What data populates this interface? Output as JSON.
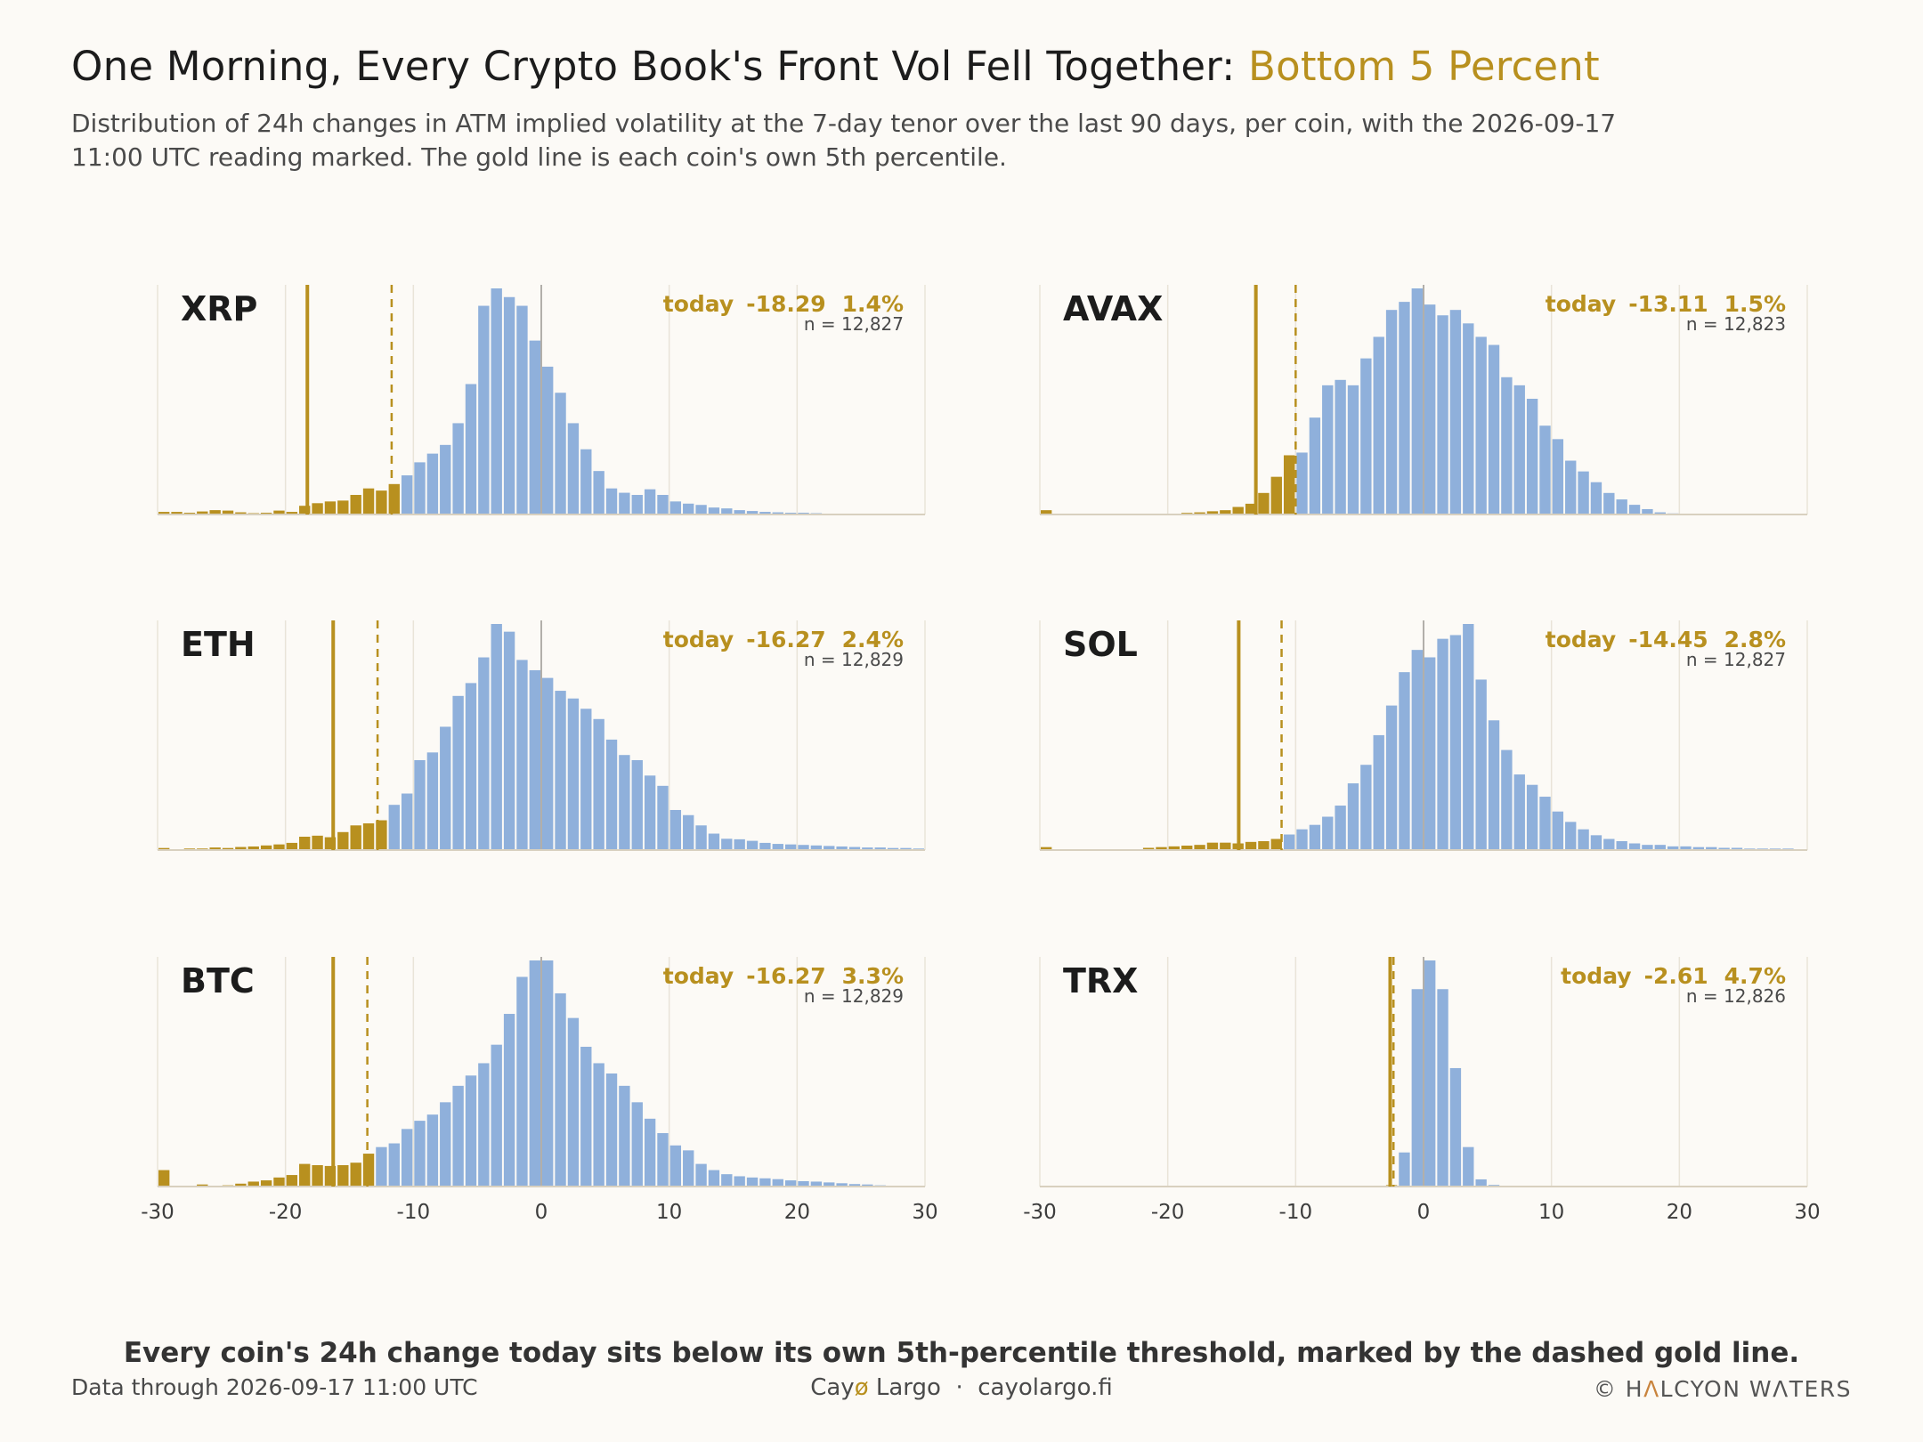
{
  "header": {
    "title_main": "One Morning, Every Crypto Book's Front Vol Fell Together: ",
    "title_highlight": "Bottom 5 Percent",
    "subtitle": "Distribution of 24h changes in ATM implied volatility at the 7-day tenor over the last 90 days, per coin, with the 2026-09-17 11:00 UTC reading marked. The gold line is each coin's own 5th percentile."
  },
  "footnote": "Every coin's 24h change today sits below its own 5th-percentile threshold, marked by the dashed gold line.",
  "footer": {
    "left": "Data through 2026-09-17 11:00 UTC",
    "brand_a": "Cay",
    "brand_o": "ø",
    "brand_b": " Largo",
    "sep": "  ·  ",
    "site": "cayolargo.fi",
    "credit_symbol": "©",
    "credit_a": " H",
    "credit_mark": "Λ",
    "credit_b": "LCYON W",
    "credit_mark2": "Λ",
    "credit_c": "TERS"
  },
  "colors": {
    "bar_normal": "#8fb0db",
    "bar_tail": "#b8901f",
    "accent": "#b8901f",
    "grid": "#e9e4d8",
    "zero_line": "#9a9690",
    "axis": "#d8d0bf"
  },
  "chart_data": [
    {
      "type": "histogram",
      "coin": "XRP",
      "today_label": "today",
      "today": -18.29,
      "today_pct": "1.4%",
      "n_label": "n = 12,827",
      "p5": -11.7,
      "bin_width": 1,
      "bins_start": -30,
      "xlim": [
        -30,
        30
      ],
      "xticks": [
        -30,
        -20,
        -10,
        0,
        10,
        20,
        30
      ],
      "x_tick_labels": [
        "-30",
        "-20",
        "-10",
        "0",
        "10",
        "20",
        "30"
      ],
      "counts": [
        6,
        6,
        4,
        7,
        10,
        9,
        5,
        3,
        4,
        9,
        6,
        20,
        26,
        30,
        32,
        45,
        60,
        55,
        70,
        90,
        120,
        140,
        160,
        210,
        300,
        480,
        520,
        500,
        480,
        400,
        340,
        280,
        210,
        150,
        100,
        60,
        50,
        45,
        58,
        45,
        30,
        25,
        22,
        16,
        14,
        10,
        8,
        6,
        5,
        4,
        4,
        3,
        2,
        2,
        1,
        1,
        1,
        0,
        0,
        0
      ]
    },
    {
      "type": "histogram",
      "coin": "AVAX",
      "today_label": "today",
      "today": -13.11,
      "today_pct": "1.5%",
      "n_label": "n = 12,823",
      "p5": -10.0,
      "bin_width": 1,
      "bins_start": -30,
      "xlim": [
        -30,
        30
      ],
      "xticks": [
        -30,
        -20,
        -10,
        0,
        10,
        20,
        30
      ],
      "x_tick_labels": [
        "-30",
        "-20",
        "-10",
        "0",
        "10",
        "20",
        "30"
      ],
      "counts": [
        8,
        0,
        0,
        0,
        0,
        0,
        0,
        0,
        0,
        0,
        0,
        3,
        4,
        6,
        8,
        14,
        20,
        40,
        70,
        110,
        115,
        180,
        240,
        250,
        240,
        290,
        330,
        380,
        395,
        420,
        390,
        370,
        380,
        355,
        330,
        315,
        255,
        240,
        215,
        165,
        140,
        100,
        80,
        60,
        40,
        28,
        18,
        10,
        4,
        2,
        1,
        0,
        0,
        0,
        0,
        0,
        0,
        0,
        0,
        0
      ]
    },
    {
      "type": "histogram",
      "coin": "ETH",
      "today_label": "today",
      "today": -16.27,
      "today_pct": "2.4%",
      "n_label": "n = 12,829",
      "p5": -12.8,
      "bin_width": 1,
      "bins_start": -30,
      "xlim": [
        -30,
        30
      ],
      "xticks": [
        -30,
        -20,
        -10,
        0,
        10,
        20,
        30
      ],
      "x_tick_labels": [
        "-30",
        "-20",
        "-10",
        "0",
        "10",
        "20",
        "30"
      ],
      "counts": [
        4,
        0,
        3,
        3,
        5,
        4,
        6,
        7,
        9,
        11,
        14,
        26,
        28,
        25,
        35,
        48,
        52,
        58,
        88,
        110,
        175,
        190,
        240,
        300,
        325,
        375,
        440,
        425,
        370,
        350,
        335,
        310,
        295,
        275,
        255,
        215,
        185,
        175,
        145,
        125,
        78,
        68,
        48,
        32,
        22,
        21,
        18,
        14,
        12,
        11,
        10,
        9,
        8,
        7,
        6,
        5,
        5,
        4,
        4,
        3
      ]
    },
    {
      "type": "histogram",
      "coin": "SOL",
      "today_label": "today",
      "today": -14.45,
      "today_pct": "2.8%",
      "n_label": "n = 12,827",
      "p5": -11.1,
      "bin_width": 1,
      "bins_start": -30,
      "xlim": [
        -30,
        30
      ],
      "xticks": [
        -30,
        -20,
        -10,
        0,
        10,
        20,
        30
      ],
      "x_tick_labels": [
        "-30",
        "-20",
        "-10",
        "0",
        "10",
        "20",
        "30"
      ],
      "counts": [
        4,
        0,
        0,
        0,
        0,
        0,
        0,
        0,
        3,
        4,
        5,
        6,
        7,
        10,
        10,
        9,
        11,
        12,
        15,
        21,
        28,
        34,
        45,
        60,
        90,
        115,
        155,
        195,
        240,
        270,
        260,
        285,
        290,
        305,
        230,
        175,
        135,
        102,
        88,
        72,
        52,
        38,
        28,
        20,
        15,
        12,
        9,
        7,
        7,
        5,
        5,
        4,
        4,
        3,
        3,
        2,
        2,
        2,
        2,
        1
      ]
    },
    {
      "type": "histogram",
      "coin": "BTC",
      "today_label": "today",
      "today": -16.27,
      "today_pct": "3.3%",
      "n_label": "n = 12,829",
      "p5": -13.6,
      "bin_width": 1,
      "bins_start": -30,
      "xlim": [
        -30,
        30
      ],
      "xticks": [
        -30,
        -20,
        -10,
        0,
        10,
        20,
        30
      ],
      "x_tick_labels": [
        "-30",
        "-20",
        "-10",
        "0",
        "10",
        "20",
        "30"
      ],
      "counts": [
        40,
        0,
        0,
        5,
        0,
        3,
        7,
        12,
        15,
        22,
        28,
        55,
        52,
        50,
        52,
        58,
        80,
        96,
        105,
        140,
        160,
        175,
        205,
        245,
        270,
        300,
        345,
        420,
        510,
        550,
        550,
        470,
        410,
        340,
        300,
        275,
        245,
        205,
        165,
        130,
        100,
        88,
        55,
        40,
        30,
        25,
        22,
        20,
        18,
        15,
        13,
        12,
        10,
        8,
        6,
        5,
        3,
        2,
        1,
        1
      ]
    },
    {
      "type": "histogram",
      "coin": "TRX",
      "today_label": "today",
      "today": -2.61,
      "today_pct": "4.7%",
      "n_label": "n = 12,826",
      "p5": -2.35,
      "bin_width": 1,
      "bins_start": -30,
      "xlim": [
        -30,
        30
      ],
      "xticks": [
        -30,
        -20,
        -10,
        0,
        10,
        20,
        30
      ],
      "x_tick_labels": [
        "-30",
        "-20",
        "-10",
        "0",
        "10",
        "20",
        "30"
      ],
      "counts": [
        0,
        0,
        0,
        0,
        0,
        0,
        0,
        0,
        0,
        0,
        0,
        0,
        0,
        0,
        0,
        0,
        0,
        0,
        0,
        0,
        0,
        0,
        0,
        0,
        0,
        2,
        5,
        8,
        190,
        1100,
        1260,
        1100,
        660,
        220,
        40,
        9,
        4,
        2,
        0,
        0,
        0,
        0,
        0,
        0,
        0,
        0,
        0,
        0,
        0,
        0,
        0,
        0,
        0,
        0,
        0,
        0,
        0,
        0,
        0,
        0
      ]
    }
  ]
}
